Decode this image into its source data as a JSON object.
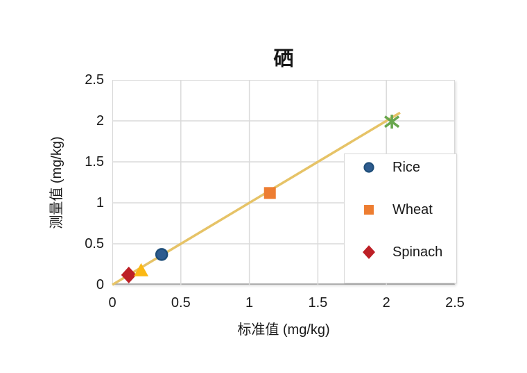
{
  "chart_data": {
    "type": "scatter",
    "title": "硒",
    "xlabel": "标准值 (mg/kg)",
    "ylabel": "测量值 (mg/kg)",
    "xlim": [
      0,
      2.5
    ],
    "ylim": [
      0,
      2.5
    ],
    "x_ticks": [
      0,
      0.5,
      1,
      1.5,
      2,
      2.5
    ],
    "x_tick_labels": [
      "0",
      "0.5",
      "1",
      "1.5",
      "2",
      "2.5"
    ],
    "y_ticks": [
      0,
      0.5,
      1,
      1.5,
      2,
      2.5
    ],
    "y_tick_labels": [
      "0",
      "0.5",
      "1",
      "1.5",
      "2",
      "2.5"
    ],
    "grid": true,
    "legend_position": "inside-right",
    "series": [
      {
        "name": "Rice",
        "marker": "circle",
        "color": "#2e5c8f",
        "edge": "#1f4e79",
        "points": [
          [
            0.36,
            0.37
          ]
        ],
        "in_legend": true
      },
      {
        "name": "Wheat",
        "marker": "square",
        "color": "#ed7d31",
        "points": [
          [
            1.15,
            1.12
          ]
        ],
        "in_legend": true
      },
      {
        "name": "Spinach",
        "marker": "diamond",
        "color": "#bd2026",
        "points": [
          [
            0.12,
            0.12
          ]
        ],
        "in_legend": true
      },
      {
        "name": "",
        "marker": "triangle",
        "color": "#fbb814",
        "points": [
          [
            0.21,
            0.18
          ]
        ],
        "in_legend": false
      },
      {
        "name": "",
        "marker": "asterisk",
        "color": "#69a74e",
        "points": [
          [
            2.04,
            1.99
          ]
        ],
        "in_legend": false
      }
    ],
    "trendline": {
      "x1": 0,
      "y1": 0,
      "x2": 2.1,
      "y2": 2.1,
      "color": "#e6c367"
    }
  },
  "style_colors": {
    "gridline": "#dadada",
    "axis_text": "#1a1a1a",
    "plot_border": "#d7d7d7",
    "axis_line": "#aeaeae",
    "legend_border": "#d9d9d9"
  }
}
